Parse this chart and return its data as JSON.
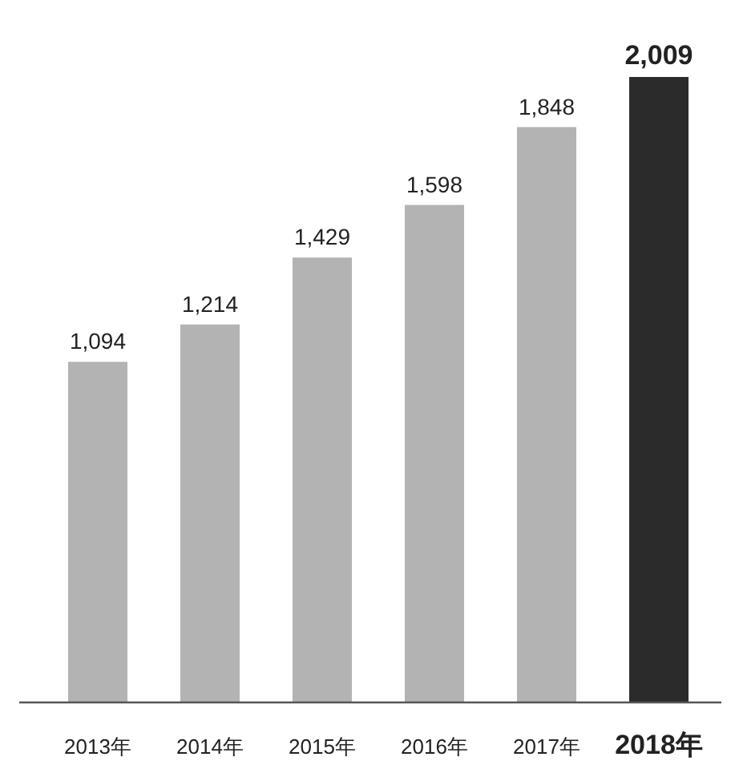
{
  "chart_data": {
    "type": "bar",
    "categories": [
      "2013年",
      "2014年",
      "2015年",
      "2016年",
      "2017年",
      "2018年"
    ],
    "values": [
      1094,
      1214,
      1429,
      1598,
      1848,
      2009
    ],
    "colors": [
      "#b3b3b3",
      "#b3b3b3",
      "#b3b3b3",
      "#b3b3b3",
      "#b3b3b3",
      "#2b2b2b"
    ],
    "value_labels": [
      "1,094",
      "1,214",
      "1,429",
      "1,598",
      "1,848",
      "2,009"
    ]
  }
}
